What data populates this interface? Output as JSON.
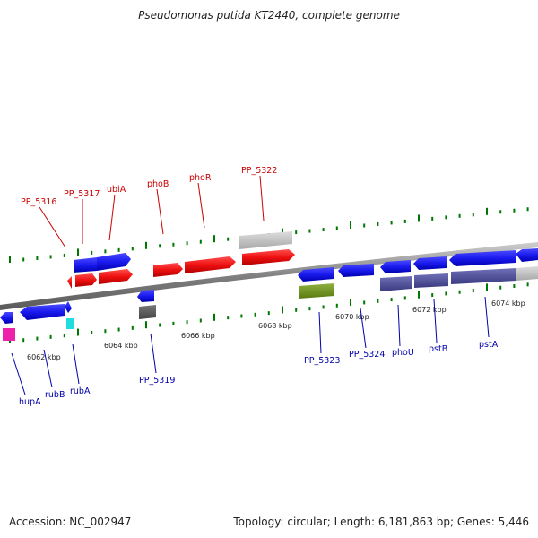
{
  "title": "Pseudomonas putida KT2440, complete genome",
  "footer": {
    "accession": "Accession: NC_002947",
    "summary": "Topology: circular; Length: 6,181,863 bp; Genes: 5,446"
  },
  "scale_labels": [
    {
      "kbp": 6062,
      "label": "6062 kbp"
    },
    {
      "kbp": 6064,
      "label": "6064 kbp"
    },
    {
      "kbp": 6066,
      "label": "6066 kbp"
    },
    {
      "kbp": 6068,
      "label": "6068 kbp"
    },
    {
      "kbp": 6070,
      "label": "6070 kbp"
    },
    {
      "kbp": 6072,
      "label": "6072 kbp"
    },
    {
      "kbp": 6074,
      "label": "6074 kbp"
    }
  ],
  "colors": {
    "forward_label": "#cc0000",
    "reverse_label": "#0000aa",
    "tick": "#007700",
    "backbone": "#888888"
  },
  "forward_genes": [
    {
      "name": "PP_5316"
    },
    {
      "name": "PP_5317"
    },
    {
      "name": "ubiA"
    },
    {
      "name": "phoB"
    },
    {
      "name": "phoR"
    },
    {
      "name": "PP_5322"
    }
  ],
  "reverse_genes": [
    {
      "name": "hupA"
    },
    {
      "name": "rubB"
    },
    {
      "name": "rubA"
    },
    {
      "name": "PP_5319"
    },
    {
      "name": "PP_5323"
    },
    {
      "name": "PP_5324"
    },
    {
      "name": "phoU"
    },
    {
      "name": "pstB"
    },
    {
      "name": "pstA"
    }
  ]
}
